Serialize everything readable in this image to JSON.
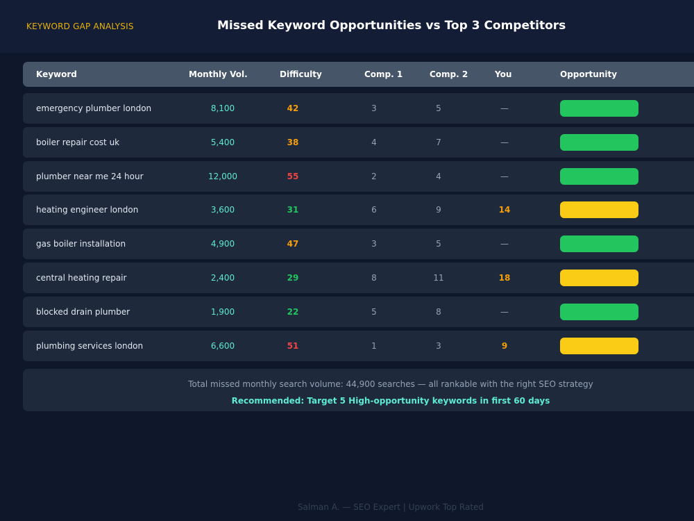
{
  "header": {
    "tag": "KEYWORD GAP ANALYSIS",
    "title": "Missed Keyword Opportunities vs Top 3 Competitors"
  },
  "table": {
    "columns": [
      "Keyword",
      "Monthly Vol.",
      "Difficulty",
      "Comp. 1",
      "Comp. 2",
      "You",
      "Opportunity"
    ],
    "rows": [
      {
        "keyword": "emergency plumber london",
        "volume": "8,100",
        "difficulty": "42",
        "difficulty_color": "#f59e0b",
        "comp1": "3",
        "comp2": "5",
        "you": "—",
        "opportunity_level": "high",
        "bar_color": "#22c55e"
      },
      {
        "keyword": "boiler repair cost uk",
        "volume": "5,400",
        "difficulty": "38",
        "difficulty_color": "#f59e0b",
        "comp1": "4",
        "comp2": "7",
        "you": "—",
        "opportunity_level": "high",
        "bar_color": "#22c55e"
      },
      {
        "keyword": "plumber near me 24 hour",
        "volume": "12,000",
        "difficulty": "55",
        "difficulty_color": "#ef4444",
        "comp1": "2",
        "comp2": "4",
        "you": "—",
        "opportunity_level": "high",
        "bar_color": "#22c55e"
      },
      {
        "keyword": "heating engineer london",
        "volume": "3,600",
        "difficulty": "31",
        "difficulty_color": "#22c55e",
        "comp1": "6",
        "comp2": "9",
        "you": "14",
        "opportunity_level": "medium",
        "bar_color": "#facc15"
      },
      {
        "keyword": "gas boiler installation",
        "volume": "4,900",
        "difficulty": "47",
        "difficulty_color": "#f59e0b",
        "comp1": "3",
        "comp2": "5",
        "you": "—",
        "opportunity_level": "high",
        "bar_color": "#22c55e"
      },
      {
        "keyword": "central heating repair",
        "volume": "2,400",
        "difficulty": "29",
        "difficulty_color": "#22c55e",
        "comp1": "8",
        "comp2": "11",
        "you": "18",
        "opportunity_level": "medium",
        "bar_color": "#facc15"
      },
      {
        "keyword": "blocked drain plumber",
        "volume": "1,900",
        "difficulty": "22",
        "difficulty_color": "#22c55e",
        "comp1": "5",
        "comp2": "8",
        "you": "—",
        "opportunity_level": "high",
        "bar_color": "#22c55e"
      },
      {
        "keyword": "plumbing services london",
        "volume": "6,600",
        "difficulty": "51",
        "difficulty_color": "#ef4444",
        "comp1": "1",
        "comp2": "3",
        "you": "9",
        "opportunity_level": "medium",
        "bar_color": "#facc15"
      }
    ]
  },
  "summary": {
    "total_text": "Total missed monthly search volume: 44,900 searches — all rankable with the right SEO strategy",
    "recommendation": "Recommended: Target 5 High-opportunity keywords in first 60 days"
  },
  "footer": {
    "credit": "Salman A. — SEO Expert | Upwork Top Rated"
  },
  "colors": {
    "background": "#0f172a",
    "header_bg": "#131d36",
    "accent_teal": "#5eead4",
    "accent_yellow": "#eab308",
    "high": "#22c55e",
    "medium": "#facc15",
    "hard": "#ef4444",
    "moderate": "#f59e0b"
  }
}
